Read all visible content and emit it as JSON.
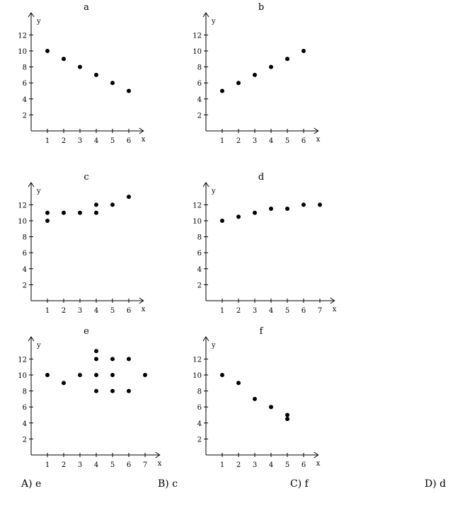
{
  "chart_data": [
    {
      "type": "scatter",
      "title": "a",
      "xlabel": "x",
      "ylabel": "y",
      "xticks": [
        1,
        2,
        3,
        4,
        5,
        6
      ],
      "yticks": [
        2,
        4,
        6,
        8,
        10,
        12
      ],
      "points": [
        [
          1,
          10
        ],
        [
          2,
          9
        ],
        [
          3,
          8
        ],
        [
          4,
          7
        ],
        [
          5,
          6
        ],
        [
          6,
          5
        ]
      ]
    },
    {
      "type": "scatter",
      "title": "b",
      "xlabel": "x",
      "ylabel": "y",
      "xticks": [
        1,
        2,
        3,
        4,
        5,
        6
      ],
      "yticks": [
        2,
        4,
        6,
        8,
        10,
        12
      ],
      "points": [
        [
          1,
          5
        ],
        [
          2,
          6
        ],
        [
          3,
          7
        ],
        [
          4,
          8
        ],
        [
          5,
          9
        ],
        [
          6,
          10
        ]
      ]
    },
    {
      "type": "scatter",
      "title": "c",
      "xlabel": "x",
      "ylabel": "y",
      "xticks": [
        1,
        2,
        3,
        4,
        5,
        6
      ],
      "yticks": [
        2,
        4,
        6,
        8,
        10,
        12
      ],
      "points": [
        [
          1,
          10
        ],
        [
          1,
          11
        ],
        [
          2,
          11
        ],
        [
          3,
          11
        ],
        [
          4,
          11
        ],
        [
          4,
          12
        ],
        [
          5,
          12
        ],
        [
          6,
          13
        ]
      ]
    },
    {
      "type": "scatter",
      "title": "d",
      "xlabel": "x",
      "ylabel": "y",
      "xticks": [
        1,
        2,
        3,
        4,
        5,
        6,
        7
      ],
      "yticks": [
        2,
        4,
        6,
        8,
        10,
        12
      ],
      "points": [
        [
          1,
          10
        ],
        [
          2,
          10.5
        ],
        [
          3,
          11
        ],
        [
          4,
          11.5
        ],
        [
          5,
          11.5
        ],
        [
          6,
          12
        ],
        [
          7,
          12
        ]
      ]
    },
    {
      "type": "scatter",
      "title": "e",
      "xlabel": "x",
      "ylabel": "y",
      "xticks": [
        1,
        2,
        3,
        4,
        5,
        6,
        7
      ],
      "yticks": [
        2,
        4,
        6,
        8,
        10,
        12
      ],
      "points": [
        [
          1,
          10
        ],
        [
          2,
          9
        ],
        [
          3,
          10
        ],
        [
          4,
          13
        ],
        [
          4,
          12
        ],
        [
          4,
          10
        ],
        [
          4,
          8
        ],
        [
          5,
          12
        ],
        [
          5,
          10
        ],
        [
          5,
          8
        ],
        [
          6,
          12
        ],
        [
          6,
          8
        ],
        [
          7,
          10
        ]
      ]
    },
    {
      "type": "scatter",
      "title": "f",
      "xlabel": "x",
      "ylabel": "y",
      "xticks": [
        1,
        2,
        3,
        4,
        5,
        6
      ],
      "yticks": [
        2,
        4,
        6,
        8,
        10,
        12
      ],
      "points": [
        [
          1,
          10
        ],
        [
          2,
          9
        ],
        [
          3,
          7
        ],
        [
          4,
          6
        ],
        [
          5,
          5
        ],
        [
          5,
          4.5
        ]
      ]
    }
  ],
  "choices": [
    "A) e",
    "B) c",
    "C) f",
    "D) d"
  ]
}
